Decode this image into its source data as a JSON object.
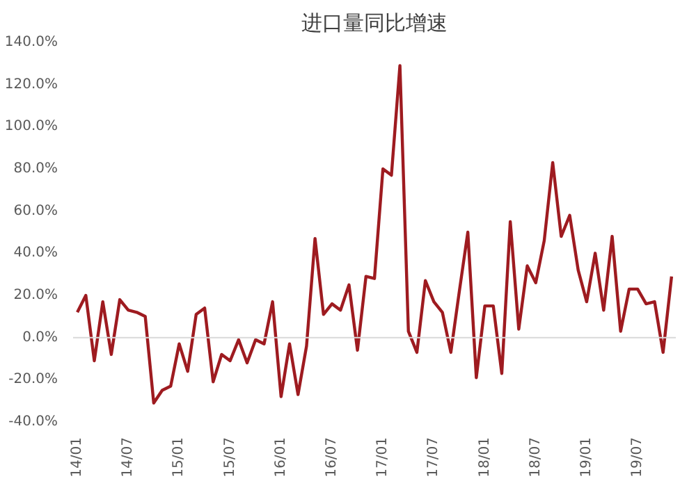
{
  "chart_data": {
    "type": "line",
    "title": "进口量同比增速",
    "categories": [
      "14/01",
      null,
      null,
      null,
      null,
      null,
      "14/07",
      null,
      null,
      null,
      null,
      null,
      "15/01",
      null,
      null,
      null,
      null,
      null,
      "15/07",
      null,
      null,
      null,
      null,
      null,
      "16/01",
      null,
      null,
      null,
      null,
      null,
      "16/07",
      null,
      null,
      null,
      null,
      null,
      "17/01",
      null,
      null,
      null,
      null,
      null,
      "17/07",
      null,
      null,
      null,
      null,
      null,
      "18/01",
      null,
      null,
      null,
      null,
      null,
      "18/07",
      null,
      null,
      null,
      null,
      null,
      "19/01",
      null,
      null,
      null,
      null,
      null,
      "19/07",
      null,
      null,
      null,
      null
    ],
    "series": [
      {
        "color": "#9e1b20",
        "values": [
          12,
          20,
          -11,
          17,
          -8,
          18,
          13,
          12,
          10,
          -31,
          -25,
          -23,
          -3,
          -16,
          11,
          14,
          -21,
          -8,
          -11,
          -1,
          -12,
          -1,
          -3,
          17,
          -28,
          -3,
          -27,
          -4,
          47,
          11,
          16,
          13,
          25,
          -6,
          29,
          28,
          80,
          77,
          129,
          3,
          -7,
          27,
          17,
          12,
          -7,
          22,
          50,
          -19,
          15,
          15,
          -17,
          55,
          4,
          34,
          26,
          46,
          83,
          48,
          58,
          32,
          17,
          40,
          13,
          48,
          3,
          23,
          23,
          16,
          17,
          -7,
          29
        ]
      }
    ],
    "ylim": [
      -40,
      140
    ],
    "yticks": [
      {
        "value": -40,
        "label": "-40.0%"
      },
      {
        "value": -20,
        "label": "-20.0%"
      },
      {
        "value": 0,
        "label": "0.0%"
      },
      {
        "value": 20,
        "label": "20.0%"
      },
      {
        "value": 40,
        "label": "40.0%"
      },
      {
        "value": 60,
        "label": "60.0%"
      },
      {
        "value": 80,
        "label": "80.0%"
      },
      {
        "value": 100,
        "label": "100.0%"
      },
      {
        "value": 120,
        "label": "120.0%"
      },
      {
        "value": 140,
        "label": "140.0%"
      }
    ],
    "ref_lines": [
      {
        "axis": "y",
        "value": 0,
        "color": "#d9d9d9"
      }
    ],
    "grid": false,
    "marker": "none",
    "line_style": "solid"
  }
}
